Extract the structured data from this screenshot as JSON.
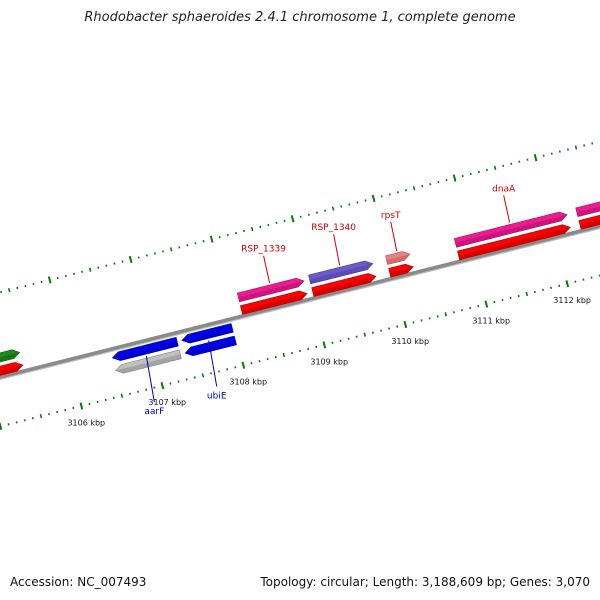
{
  "title": "Rhodobacter sphaeroides 2.4.1 chromosome 1, complete genome",
  "footer": {
    "accession": "Accession: NC_007493",
    "summary": "Topology: circular; Length: 3,188,609 bp; Genes: 3,070"
  },
  "colors": {
    "backbone": "#8a8a8a",
    "tick": "#0a7a0a",
    "forward_gene_label": "#cc0000",
    "reverse_gene_label": "#0000aa"
  },
  "ticks": [
    {
      "kbp": 3106,
      "label": "3106 kbp"
    },
    {
      "kbp": 3107,
      "label": "3107 kbp"
    },
    {
      "kbp": 3108,
      "label": "3108 kbp"
    },
    {
      "kbp": 3109,
      "label": "3109 kbp"
    },
    {
      "kbp": 3110,
      "label": "3110 kbp"
    },
    {
      "kbp": 3111,
      "label": "3111 kbp"
    },
    {
      "kbp": 3112,
      "label": "3112 kbp"
    }
  ],
  "genes": [
    {
      "start": 3105.14,
      "end": 3105.44,
      "strand": "+",
      "track": 1,
      "color": "#1e8a1e",
      "label": ""
    },
    {
      "start": 3105.14,
      "end": 3105.44,
      "strand": "+",
      "track": 2,
      "color": "#ff0000",
      "label": ""
    },
    {
      "start": 3106.5,
      "end": 3107.3,
      "strand": "-",
      "track": 1,
      "color": "#0000ee",
      "label": "aarF"
    },
    {
      "start": 3106.5,
      "end": 3107.3,
      "strand": "-",
      "track": 2,
      "color": "#c0c0c0",
      "label": ""
    },
    {
      "start": 3107.36,
      "end": 3107.98,
      "strand": "-",
      "track": 1,
      "color": "#0000ee",
      "label": "ubiE"
    },
    {
      "start": 3107.36,
      "end": 3107.98,
      "strand": "-",
      "track": 2,
      "color": "#0000ee",
      "label": ""
    },
    {
      "start": 3108.14,
      "end": 3108.95,
      "strand": "+",
      "track": 1,
      "color": "#ee1a90",
      "label": "RSP_1339"
    },
    {
      "start": 3108.14,
      "end": 3108.95,
      "strand": "+",
      "track": 2,
      "color": "#ff0000",
      "label": ""
    },
    {
      "start": 3109.02,
      "end": 3109.8,
      "strand": "+",
      "track": 1,
      "color": "#6a5acd",
      "label": "RSP_1340"
    },
    {
      "start": 3109.02,
      "end": 3109.8,
      "strand": "+",
      "track": 2,
      "color": "#ff0000",
      "label": ""
    },
    {
      "start": 3109.97,
      "end": 3110.26,
      "strand": "+",
      "track": 1,
      "color": "#f08080",
      "label": "rpsT"
    },
    {
      "start": 3109.97,
      "end": 3110.26,
      "strand": "+",
      "track": 2,
      "color": "#ff0000",
      "label": ""
    },
    {
      "start": 3110.82,
      "end": 3112.2,
      "strand": "+",
      "track": 1,
      "color": "#ee1a90",
      "label": "dnaA"
    },
    {
      "start": 3110.82,
      "end": 3112.2,
      "strand": "+",
      "track": 2,
      "color": "#ff0000",
      "label": ""
    },
    {
      "start": 3112.32,
      "end": 3112.74,
      "strand": "+",
      "track": 1,
      "color": "#ee1a90",
      "label": ""
    },
    {
      "start": 3112.32,
      "end": 3112.74,
      "strand": "+",
      "track": 2,
      "color": "#ff0000",
      "label": ""
    }
  ]
}
